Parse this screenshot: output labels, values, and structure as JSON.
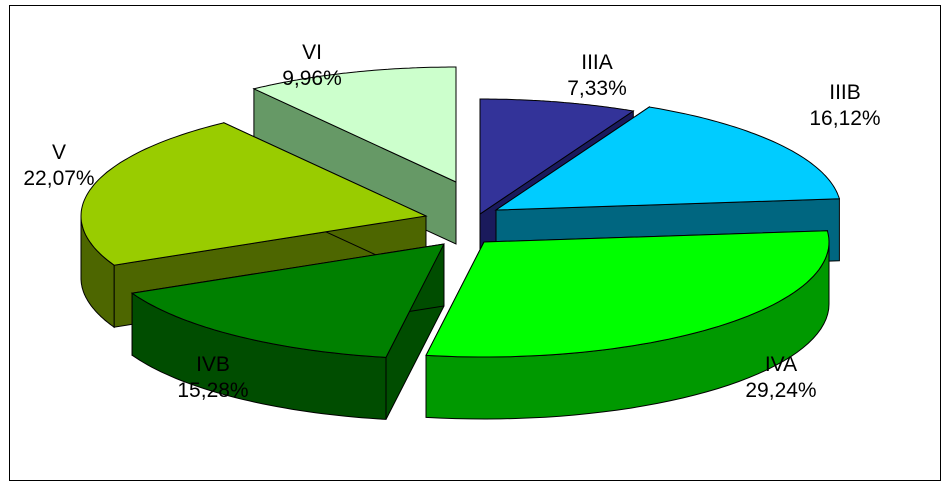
{
  "chart_data": {
    "type": "pie",
    "variant": "3d-exploded",
    "slices": [
      {
        "name": "IIIA",
        "label": "IIIA",
        "pct_label": "7,33%",
        "value": 7.33,
        "top": "#333399",
        "side": "#1a1a5c"
      },
      {
        "name": "IIIB",
        "label": "IIIB",
        "pct_label": "16,12%",
        "value": 16.12,
        "top": "#00ccff",
        "side": "#006680"
      },
      {
        "name": "IVA",
        "label": "IVA",
        "pct_label": "29,24%",
        "value": 29.24,
        "top": "#00ff00",
        "side": "#009900"
      },
      {
        "name": "IVB",
        "label": "IVB",
        "pct_label": "15,28%",
        "value": 15.28,
        "top": "#008000",
        "side": "#004d00"
      },
      {
        "name": "V",
        "label": "V",
        "pct_label": "22,07%",
        "value": 22.07,
        "top": "#99cc00",
        "side": "#4d6600"
      },
      {
        "name": "VI",
        "label": "VI",
        "pct_label": "9,96%",
        "value": 9.96,
        "top": "#ccffcc",
        "side": "#669966"
      }
    ],
    "legend": "none"
  }
}
